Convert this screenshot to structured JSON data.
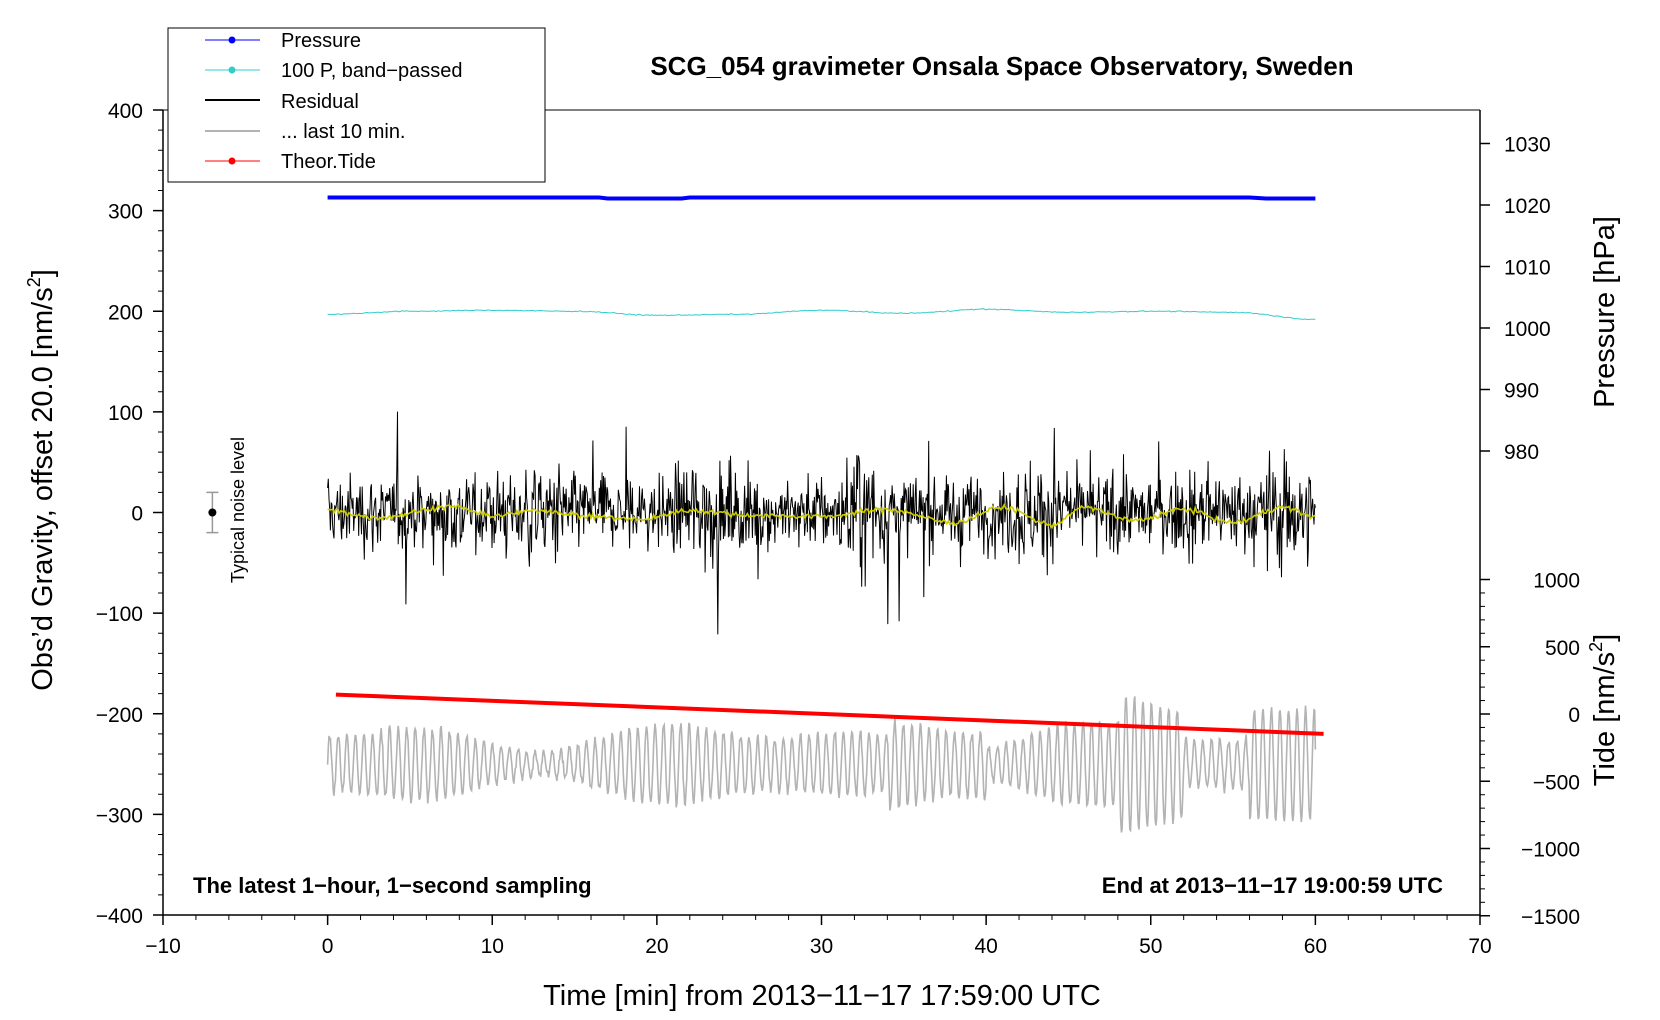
{
  "chart_data": {
    "type": "line",
    "title": "SCG_054 gravimeter Onsala Space Observatory, Sweden",
    "xlabel": "Time [min] from 2013−11−17 17:59:00 UTC",
    "ylabel_left": "Obs’d Gravity, offset 20.0 [nm/s",
    "ylabel_left_sup": "2",
    "ylabel_left_tail": "]",
    "ylabel_pressure": "Pressure [hPa]",
    "ylabel_tide": "Tide [nm/s",
    "ylabel_tide_sup": "2",
    "ylabel_tide_tail": "]",
    "xlim": [
      -10,
      70
    ],
    "ylim": [
      -400,
      400
    ],
    "x_ticks": [
      {
        "value": -10,
        "label": "−10"
      },
      {
        "value": 0,
        "label": "0"
      },
      {
        "value": 10,
        "label": "10"
      },
      {
        "value": 20,
        "label": "20"
      },
      {
        "value": 30,
        "label": "30"
      },
      {
        "value": 40,
        "label": "40"
      },
      {
        "value": 50,
        "label": "50"
      },
      {
        "value": 60,
        "label": "60"
      },
      {
        "value": 70,
        "label": "70"
      }
    ],
    "y_ticks": [
      {
        "value": 400,
        "label": "400"
      },
      {
        "value": 300,
        "label": "300"
      },
      {
        "value": 200,
        "label": "200"
      },
      {
        "value": 100,
        "label": "100"
      },
      {
        "value": 0,
        "label": "0"
      },
      {
        "value": -100,
        "label": "−100"
      },
      {
        "value": -200,
        "label": "−200"
      },
      {
        "value": -300,
        "label": "−300"
      },
      {
        "value": -400,
        "label": "−400"
      }
    ],
    "pressure_axis": {
      "ticks": [
        {
          "value": 1030,
          "label": "1030"
        },
        {
          "value": 1020,
          "label": "1020"
        },
        {
          "value": 1010,
          "label": "1010"
        },
        {
          "value": 1000,
          "label": "1000"
        },
        {
          "value": 990,
          "label": "990"
        },
        {
          "value": 980,
          "label": "980"
        }
      ]
    },
    "tide_axis": {
      "ticks": [
        {
          "value": 1000,
          "label": "1000"
        },
        {
          "value": 500,
          "label": "500"
        },
        {
          "value": 0,
          "label": "0"
        },
        {
          "value": -500,
          "label": "−500"
        },
        {
          "value": -1000,
          "label": "−1000"
        },
        {
          "value": -1500,
          "label": "−1500"
        }
      ]
    },
    "legend": [
      {
        "label": "Pressure",
        "color": "#0000ff",
        "marker": true,
        "width": 1
      },
      {
        "label": "100 P, band−passed",
        "color": "#33cccc",
        "marker": true,
        "width": 1
      },
      {
        "label": "Residual",
        "color": "#000000",
        "marker": false,
        "width": 2
      },
      {
        "label": "... last 10 min.",
        "color": "#b3b3b3",
        "marker": false,
        "width": 2
      },
      {
        "label": "Theor.Tide",
        "color": "#ff0000",
        "marker": true,
        "width": 1
      }
    ],
    "annotations": {
      "bottom_left": "The latest 1−hour, 1−second sampling",
      "bottom_right": "End at 2013−11−17 19:00:59 UTC",
      "noise_label": "Typical noise level"
    },
    "noise_bar": {
      "x": -7,
      "center": 0,
      "half_range": 20
    },
    "series": [
      {
        "name": "Pressure",
        "color": "#0000ff",
        "x": [
          0,
          16.5,
          17,
          21.5,
          22,
          56,
          57,
          60
        ],
        "values": [
          313,
          313,
          312,
          312,
          313,
          313,
          312,
          312
        ]
      },
      {
        "name": "100 P, band-passed",
        "color": "#33cccc",
        "x": [
          0,
          5,
          10,
          15,
          20,
          25,
          30,
          35,
          40,
          45,
          50,
          55,
          60
        ],
        "values": [
          197,
          200,
          201,
          200,
          196,
          197,
          201,
          198,
          202,
          199,
          200,
          199,
          192
        ]
      },
      {
        "name": "Residual (smoothed)",
        "color": "#cccc00",
        "x": [
          0,
          3,
          7.5,
          10,
          13,
          16,
          19,
          22,
          26,
          30,
          34,
          38,
          41,
          44,
          46,
          49,
          52,
          55,
          58,
          60
        ],
        "values": [
          2,
          -5,
          6,
          -3,
          2,
          -4,
          -7,
          2,
          -3,
          -4,
          3,
          -10,
          5,
          -12,
          5,
          -8,
          3,
          -10,
          5,
          -4
        ]
      },
      {
        "name": "Theor.Tide",
        "color": "#ff0000",
        "x": [
          0.5,
          60.5
        ],
        "values": [
          -181,
          -220
        ]
      }
    ]
  }
}
